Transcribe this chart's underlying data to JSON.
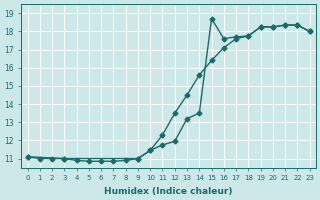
{
  "line1_x": [
    0,
    1,
    2,
    3,
    4,
    5,
    6,
    7,
    8,
    9,
    10,
    11,
    12,
    13,
    14,
    15,
    16,
    17,
    18,
    19,
    20,
    21,
    22,
    23
  ],
  "line1_y": [
    11.1,
    11.0,
    11.0,
    11.0,
    10.9,
    10.85,
    10.85,
    10.85,
    10.9,
    11.0,
    11.45,
    11.75,
    11.95,
    13.2,
    13.5,
    18.7,
    17.6,
    17.7,
    17.75,
    18.25,
    18.25,
    18.35,
    18.35,
    18.0
  ],
  "line2_x": [
    0,
    3,
    9,
    10,
    11,
    12,
    13,
    14,
    15,
    16,
    17,
    18,
    19,
    20,
    21,
    22,
    23
  ],
  "line2_y": [
    11.1,
    11.0,
    11.0,
    11.45,
    12.3,
    13.5,
    14.5,
    15.6,
    16.4,
    17.1,
    17.6,
    17.75,
    18.25,
    18.25,
    18.35,
    18.35,
    18.0
  ],
  "line_color": "#1a6b6b",
  "bg_color": "#cce8e8",
  "grid_color": "#ffffff",
  "xlabel": "Humidex (Indice chaleur)",
  "ylim": [
    10.5,
    19.5
  ],
  "xlim": [
    -0.5,
    23.5
  ],
  "yticks": [
    11,
    12,
    13,
    14,
    15,
    16,
    17,
    18,
    19
  ],
  "xticks": [
    0,
    1,
    2,
    3,
    4,
    5,
    6,
    7,
    8,
    9,
    10,
    11,
    12,
    13,
    14,
    15,
    16,
    17,
    18,
    19,
    20,
    21,
    22,
    23
  ],
  "xtick_labels": [
    "0",
    "1",
    "2",
    "3",
    "4",
    "5",
    "6",
    "7",
    "8",
    "9",
    "10",
    "11",
    "12",
    "13",
    "14",
    "15",
    "16",
    "17",
    "18",
    "19",
    "20",
    "21",
    "22",
    "23"
  ],
  "marker": "D",
  "marker_size": 2.5,
  "linewidth": 1.0
}
